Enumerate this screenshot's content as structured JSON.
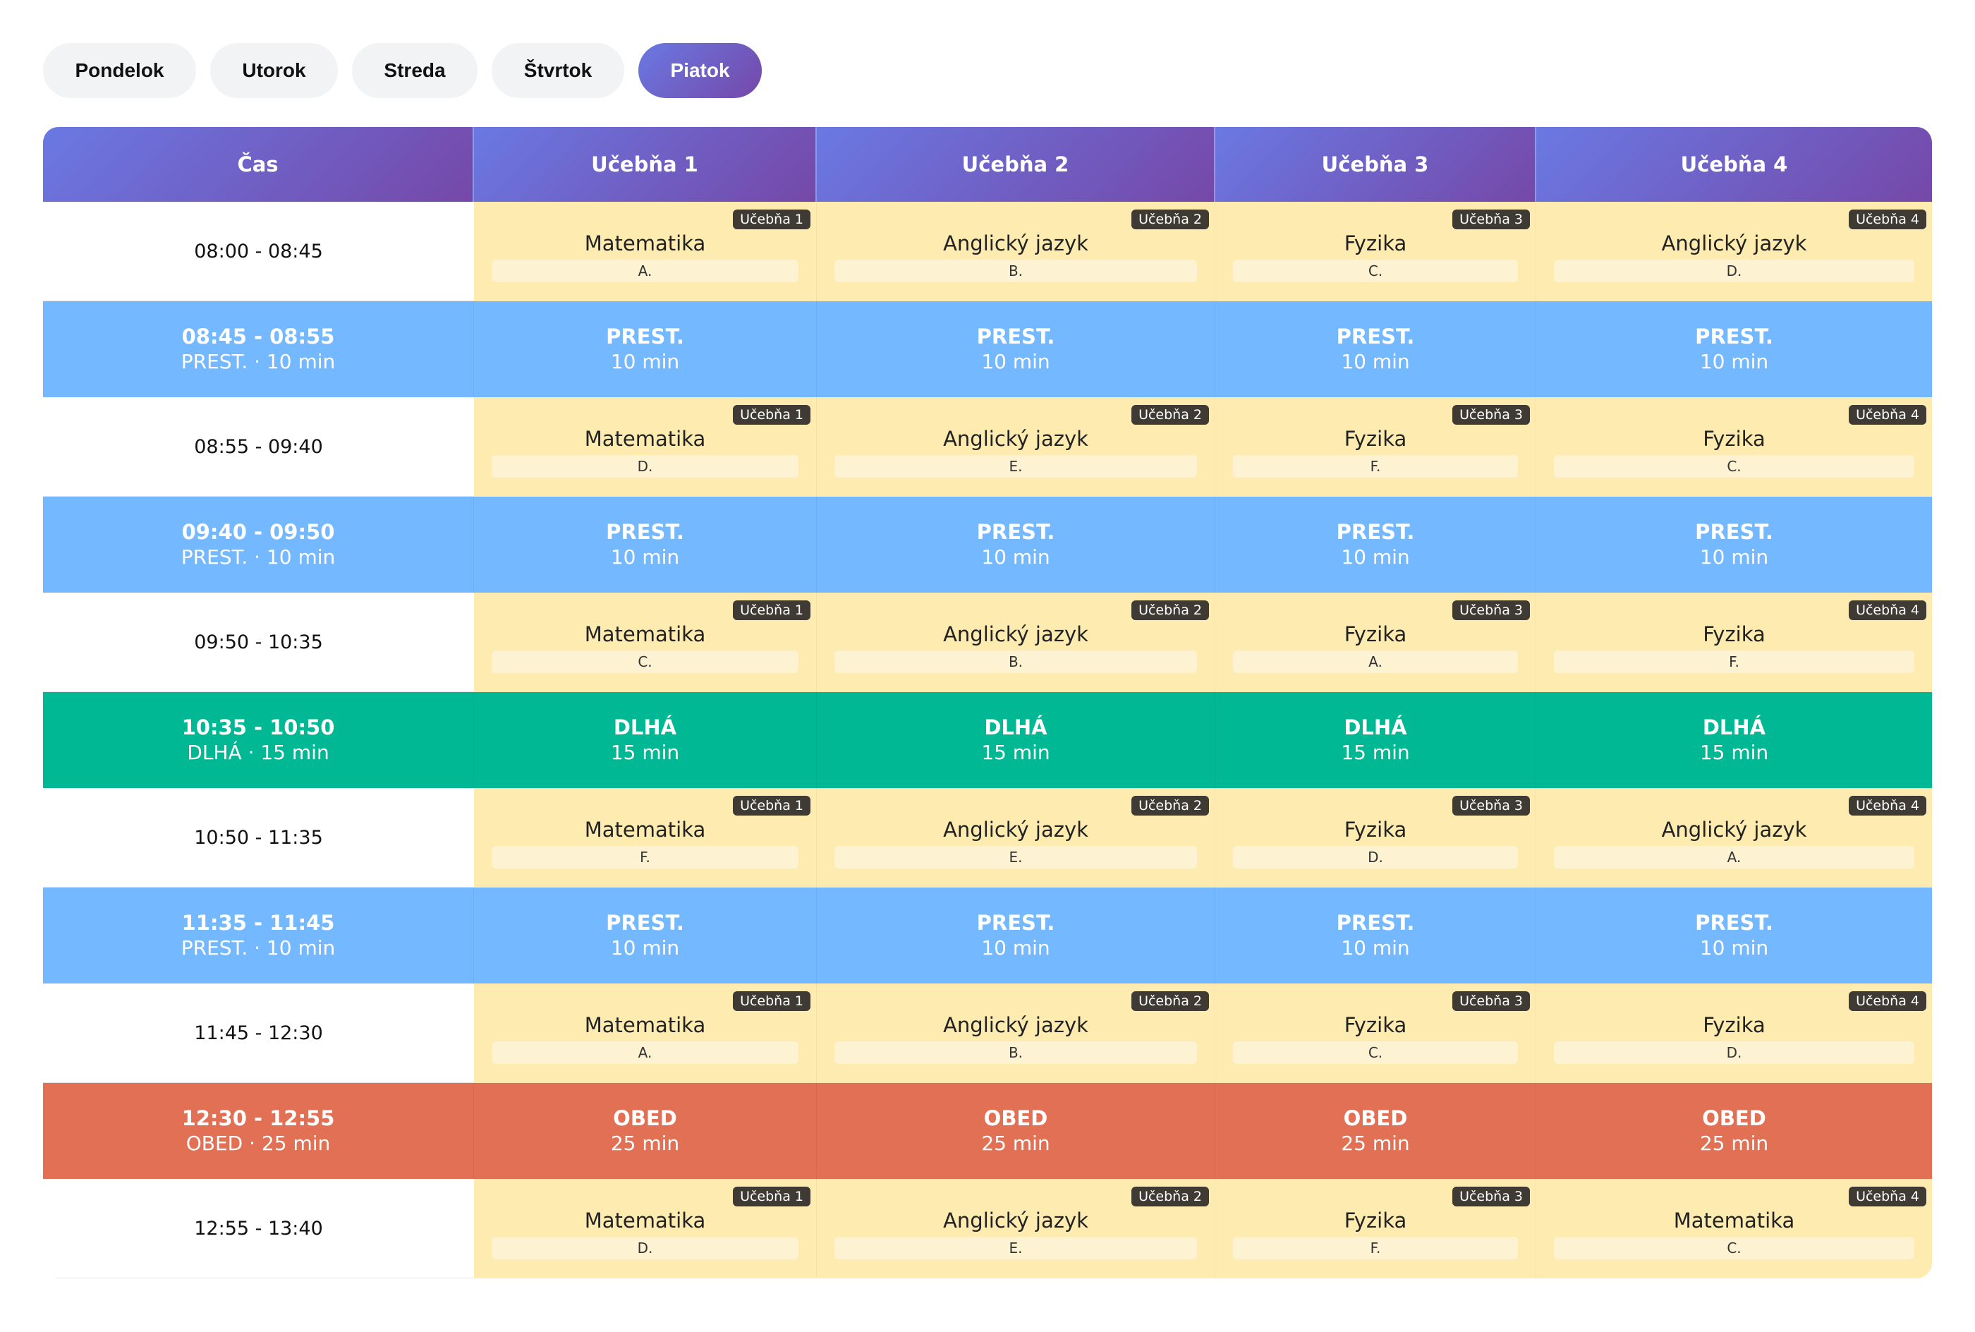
{
  "days": [
    {
      "label": "Pondelok",
      "active": false
    },
    {
      "label": "Utorok",
      "active": false
    },
    {
      "label": "Streda",
      "active": false
    },
    {
      "label": "Štvrtok",
      "active": false
    },
    {
      "label": "Piatok",
      "active": true
    }
  ],
  "header": [
    "Čas",
    "Učebňa 1",
    "Učebňa 2",
    "Učebňa 3",
    "Učebňa 4"
  ],
  "rows": [
    {
      "type": "lesson",
      "time": "08:00 - 08:45",
      "cells": [
        {
          "badge": "Učebňa 1",
          "subject": "Matematika",
          "teacher": "A."
        },
        {
          "badge": "Učebňa 2",
          "subject": "Anglický jazyk",
          "teacher": "B."
        },
        {
          "badge": "Učebňa 3",
          "subject": "Fyzika",
          "teacher": "C."
        },
        {
          "badge": "Učebňa 4",
          "subject": "Anglický jazyk",
          "teacher": "D."
        }
      ]
    },
    {
      "type": "prest",
      "time": "08:45 - 08:55",
      "sub": "PREST. · 10 min",
      "label": "PREST.",
      "duration": "10 min"
    },
    {
      "type": "lesson",
      "time": "08:55 - 09:40",
      "cells": [
        {
          "badge": "Učebňa 1",
          "subject": "Matematika",
          "teacher": "D."
        },
        {
          "badge": "Učebňa 2",
          "subject": "Anglický jazyk",
          "teacher": "E."
        },
        {
          "badge": "Učebňa 3",
          "subject": "Fyzika",
          "teacher": "F."
        },
        {
          "badge": "Učebňa 4",
          "subject": "Fyzika",
          "teacher": "C."
        }
      ]
    },
    {
      "type": "prest",
      "time": "09:40 - 09:50",
      "sub": "PREST. · 10 min",
      "label": "PREST.",
      "duration": "10 min"
    },
    {
      "type": "lesson",
      "time": "09:50 - 10:35",
      "cells": [
        {
          "badge": "Učebňa 1",
          "subject": "Matematika",
          "teacher": "C."
        },
        {
          "badge": "Učebňa 2",
          "subject": "Anglický jazyk",
          "teacher": "B."
        },
        {
          "badge": "Učebňa 3",
          "subject": "Fyzika",
          "teacher": "A."
        },
        {
          "badge": "Učebňa 4",
          "subject": "Fyzika",
          "teacher": "F."
        }
      ]
    },
    {
      "type": "dlha",
      "time": "10:35 - 10:50",
      "sub": "DLHÁ · 15 min",
      "label": "DLHÁ",
      "duration": "15 min"
    },
    {
      "type": "lesson",
      "time": "10:50 - 11:35",
      "cells": [
        {
          "badge": "Učebňa 1",
          "subject": "Matematika",
          "teacher": "F."
        },
        {
          "badge": "Učebňa 2",
          "subject": "Anglický jazyk",
          "teacher": "E."
        },
        {
          "badge": "Učebňa 3",
          "subject": "Fyzika",
          "teacher": "D."
        },
        {
          "badge": "Učebňa 4",
          "subject": "Anglický jazyk",
          "teacher": "A."
        }
      ]
    },
    {
      "type": "prest",
      "time": "11:35 - 11:45",
      "sub": "PREST. · 10 min",
      "label": "PREST.",
      "duration": "10 min"
    },
    {
      "type": "lesson",
      "time": "11:45 - 12:30",
      "cells": [
        {
          "badge": "Učebňa 1",
          "subject": "Matematika",
          "teacher": "A."
        },
        {
          "badge": "Učebňa 2",
          "subject": "Anglický jazyk",
          "teacher": "B."
        },
        {
          "badge": "Učebňa 3",
          "subject": "Fyzika",
          "teacher": "C."
        },
        {
          "badge": "Učebňa 4",
          "subject": "Fyzika",
          "teacher": "D."
        }
      ]
    },
    {
      "type": "obed",
      "time": "12:30 - 12:55",
      "sub": "OBED · 25 min",
      "label": "OBED",
      "duration": "25 min"
    },
    {
      "type": "lesson",
      "time": "12:55 - 13:40",
      "cells": [
        {
          "badge": "Učebňa 1",
          "subject": "Matematika",
          "teacher": "D."
        },
        {
          "badge": "Učebňa 2",
          "subject": "Anglický jazyk",
          "teacher": "E."
        },
        {
          "badge": "Učebňa 3",
          "subject": "Fyzika",
          "teacher": "F."
        },
        {
          "badge": "Učebňa 4",
          "subject": "Matematika",
          "teacher": "C."
        }
      ]
    }
  ],
  "colors": {
    "accent_start": "#6a79e3",
    "accent_end": "#7548a8",
    "lesson": "#fdebb0",
    "prest": "#74b9ff",
    "dlha": "#00b894",
    "obed": "#e17055"
  }
}
